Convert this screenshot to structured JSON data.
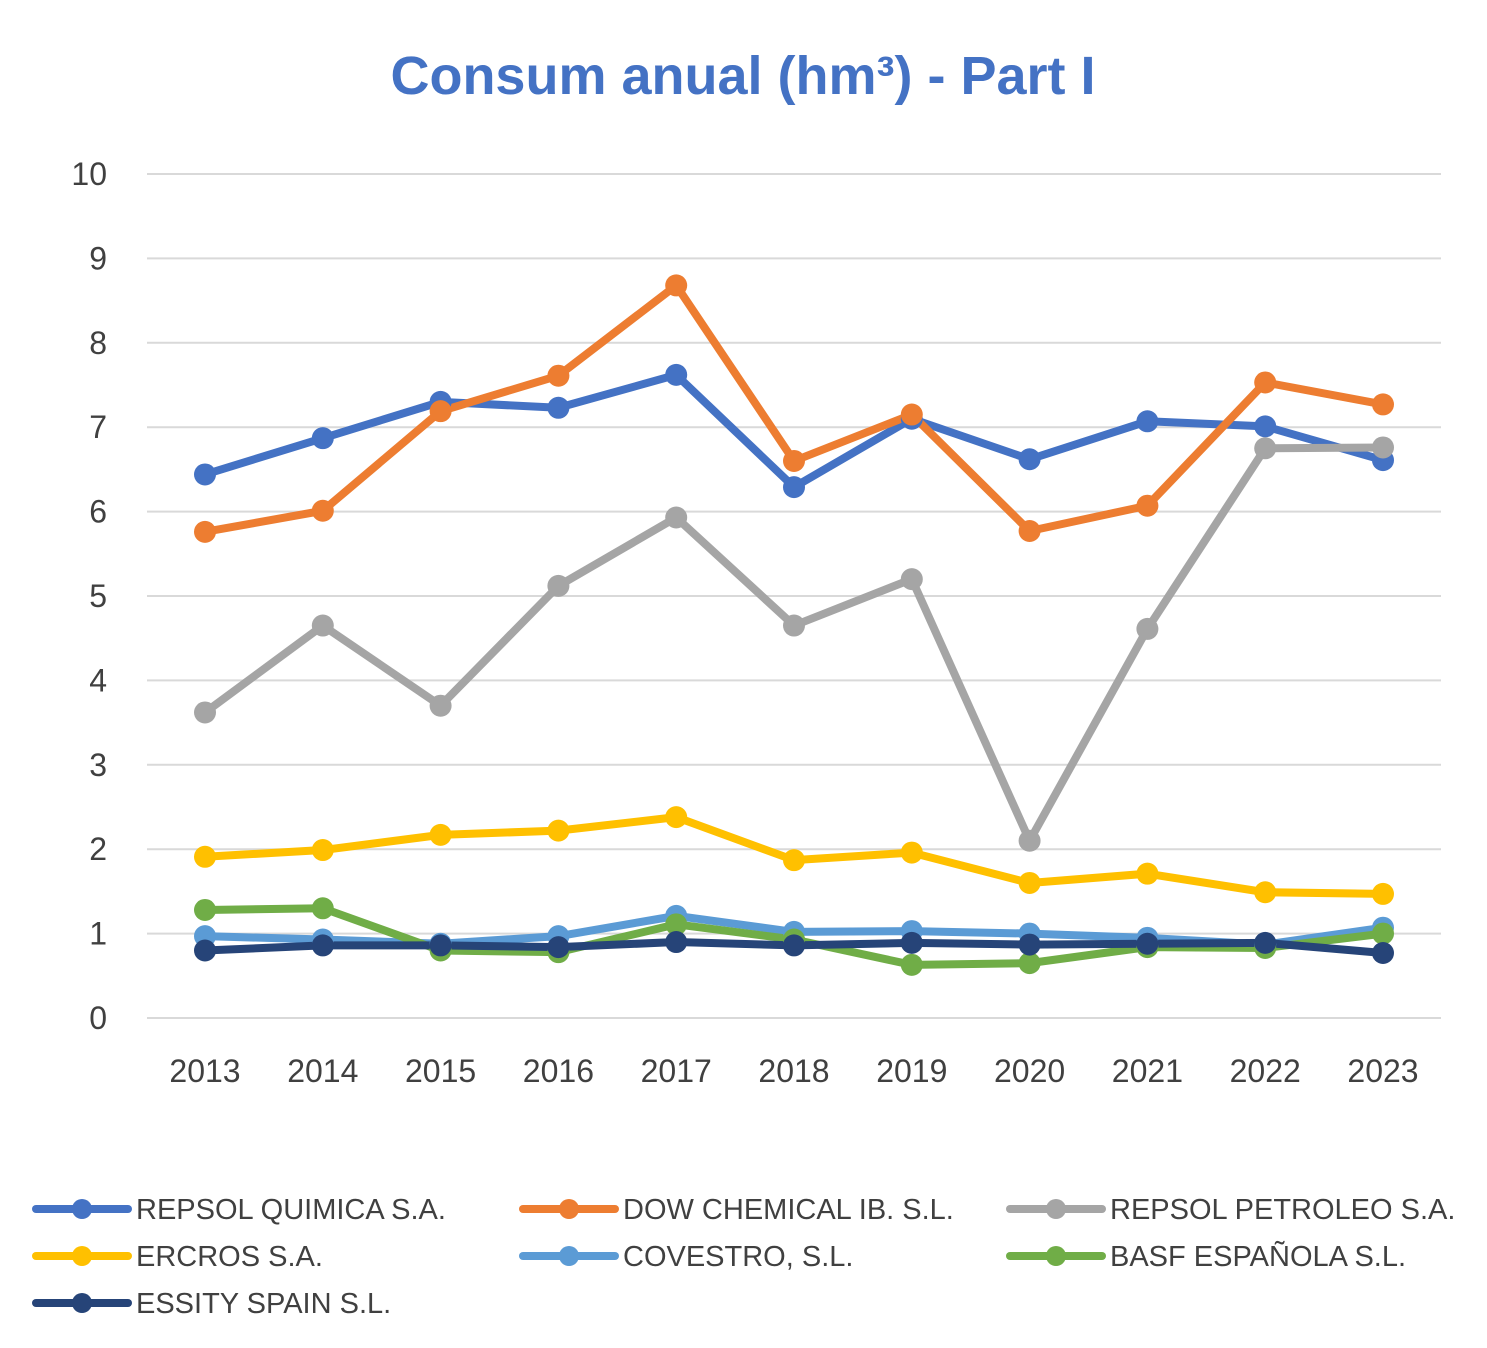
{
  "chart_data": {
    "type": "line",
    "title": "Consum anual (hm³) - Part I",
    "xlabel": "",
    "ylabel": "",
    "ylim": [
      0,
      10
    ],
    "yticks": [
      0,
      1,
      2,
      3,
      4,
      5,
      6,
      7,
      8,
      9,
      10
    ],
    "grid": true,
    "legend_position": "bottom",
    "categories": [
      "2013",
      "2014",
      "2015",
      "2016",
      "2017",
      "2018",
      "2019",
      "2020",
      "2021",
      "2022",
      "2023"
    ],
    "series": [
      {
        "name": "REPSOL QUIMICA S.A.",
        "color": "#4472c4",
        "values": [
          6.44,
          6.87,
          7.3,
          7.23,
          7.62,
          6.29,
          7.1,
          6.62,
          7.07,
          7.01,
          6.61
        ]
      },
      {
        "name": "DOW CHEMICAL IB. S.L.",
        "color": "#ed7d31",
        "values": [
          5.76,
          6.01,
          7.19,
          7.61,
          8.68,
          6.6,
          7.15,
          5.77,
          6.07,
          7.53,
          7.27
        ]
      },
      {
        "name": "REPSOL PETROLEO S.A.",
        "color": "#a5a5a5",
        "values": [
          3.62,
          4.65,
          3.7,
          5.12,
          5.93,
          4.65,
          5.2,
          2.1,
          4.61,
          6.75,
          6.76
        ]
      },
      {
        "name": "ERCROS S.A.",
        "color": "#ffc000",
        "values": [
          1.91,
          1.99,
          2.17,
          2.22,
          2.38,
          1.87,
          1.96,
          1.6,
          1.71,
          1.49,
          1.47
        ]
      },
      {
        "name": "COVESTRO, S.L.",
        "color": "#5b9bd5",
        "values": [
          0.97,
          0.93,
          0.88,
          0.97,
          1.21,
          1.02,
          1.03,
          1.0,
          0.95,
          0.87,
          1.07
        ]
      },
      {
        "name": "BASF ESPAÑOLA S.L.",
        "color": "#70ad47",
        "values": [
          1.28,
          1.3,
          0.8,
          0.78,
          1.11,
          0.93,
          0.63,
          0.65,
          0.84,
          0.83,
          1.0
        ]
      },
      {
        "name": "ESSITY SPAIN S.L.",
        "color": "#264478",
        "values": [
          0.8,
          0.86,
          0.86,
          0.84,
          0.9,
          0.86,
          0.89,
          0.87,
          0.88,
          0.89,
          0.77
        ]
      }
    ]
  }
}
